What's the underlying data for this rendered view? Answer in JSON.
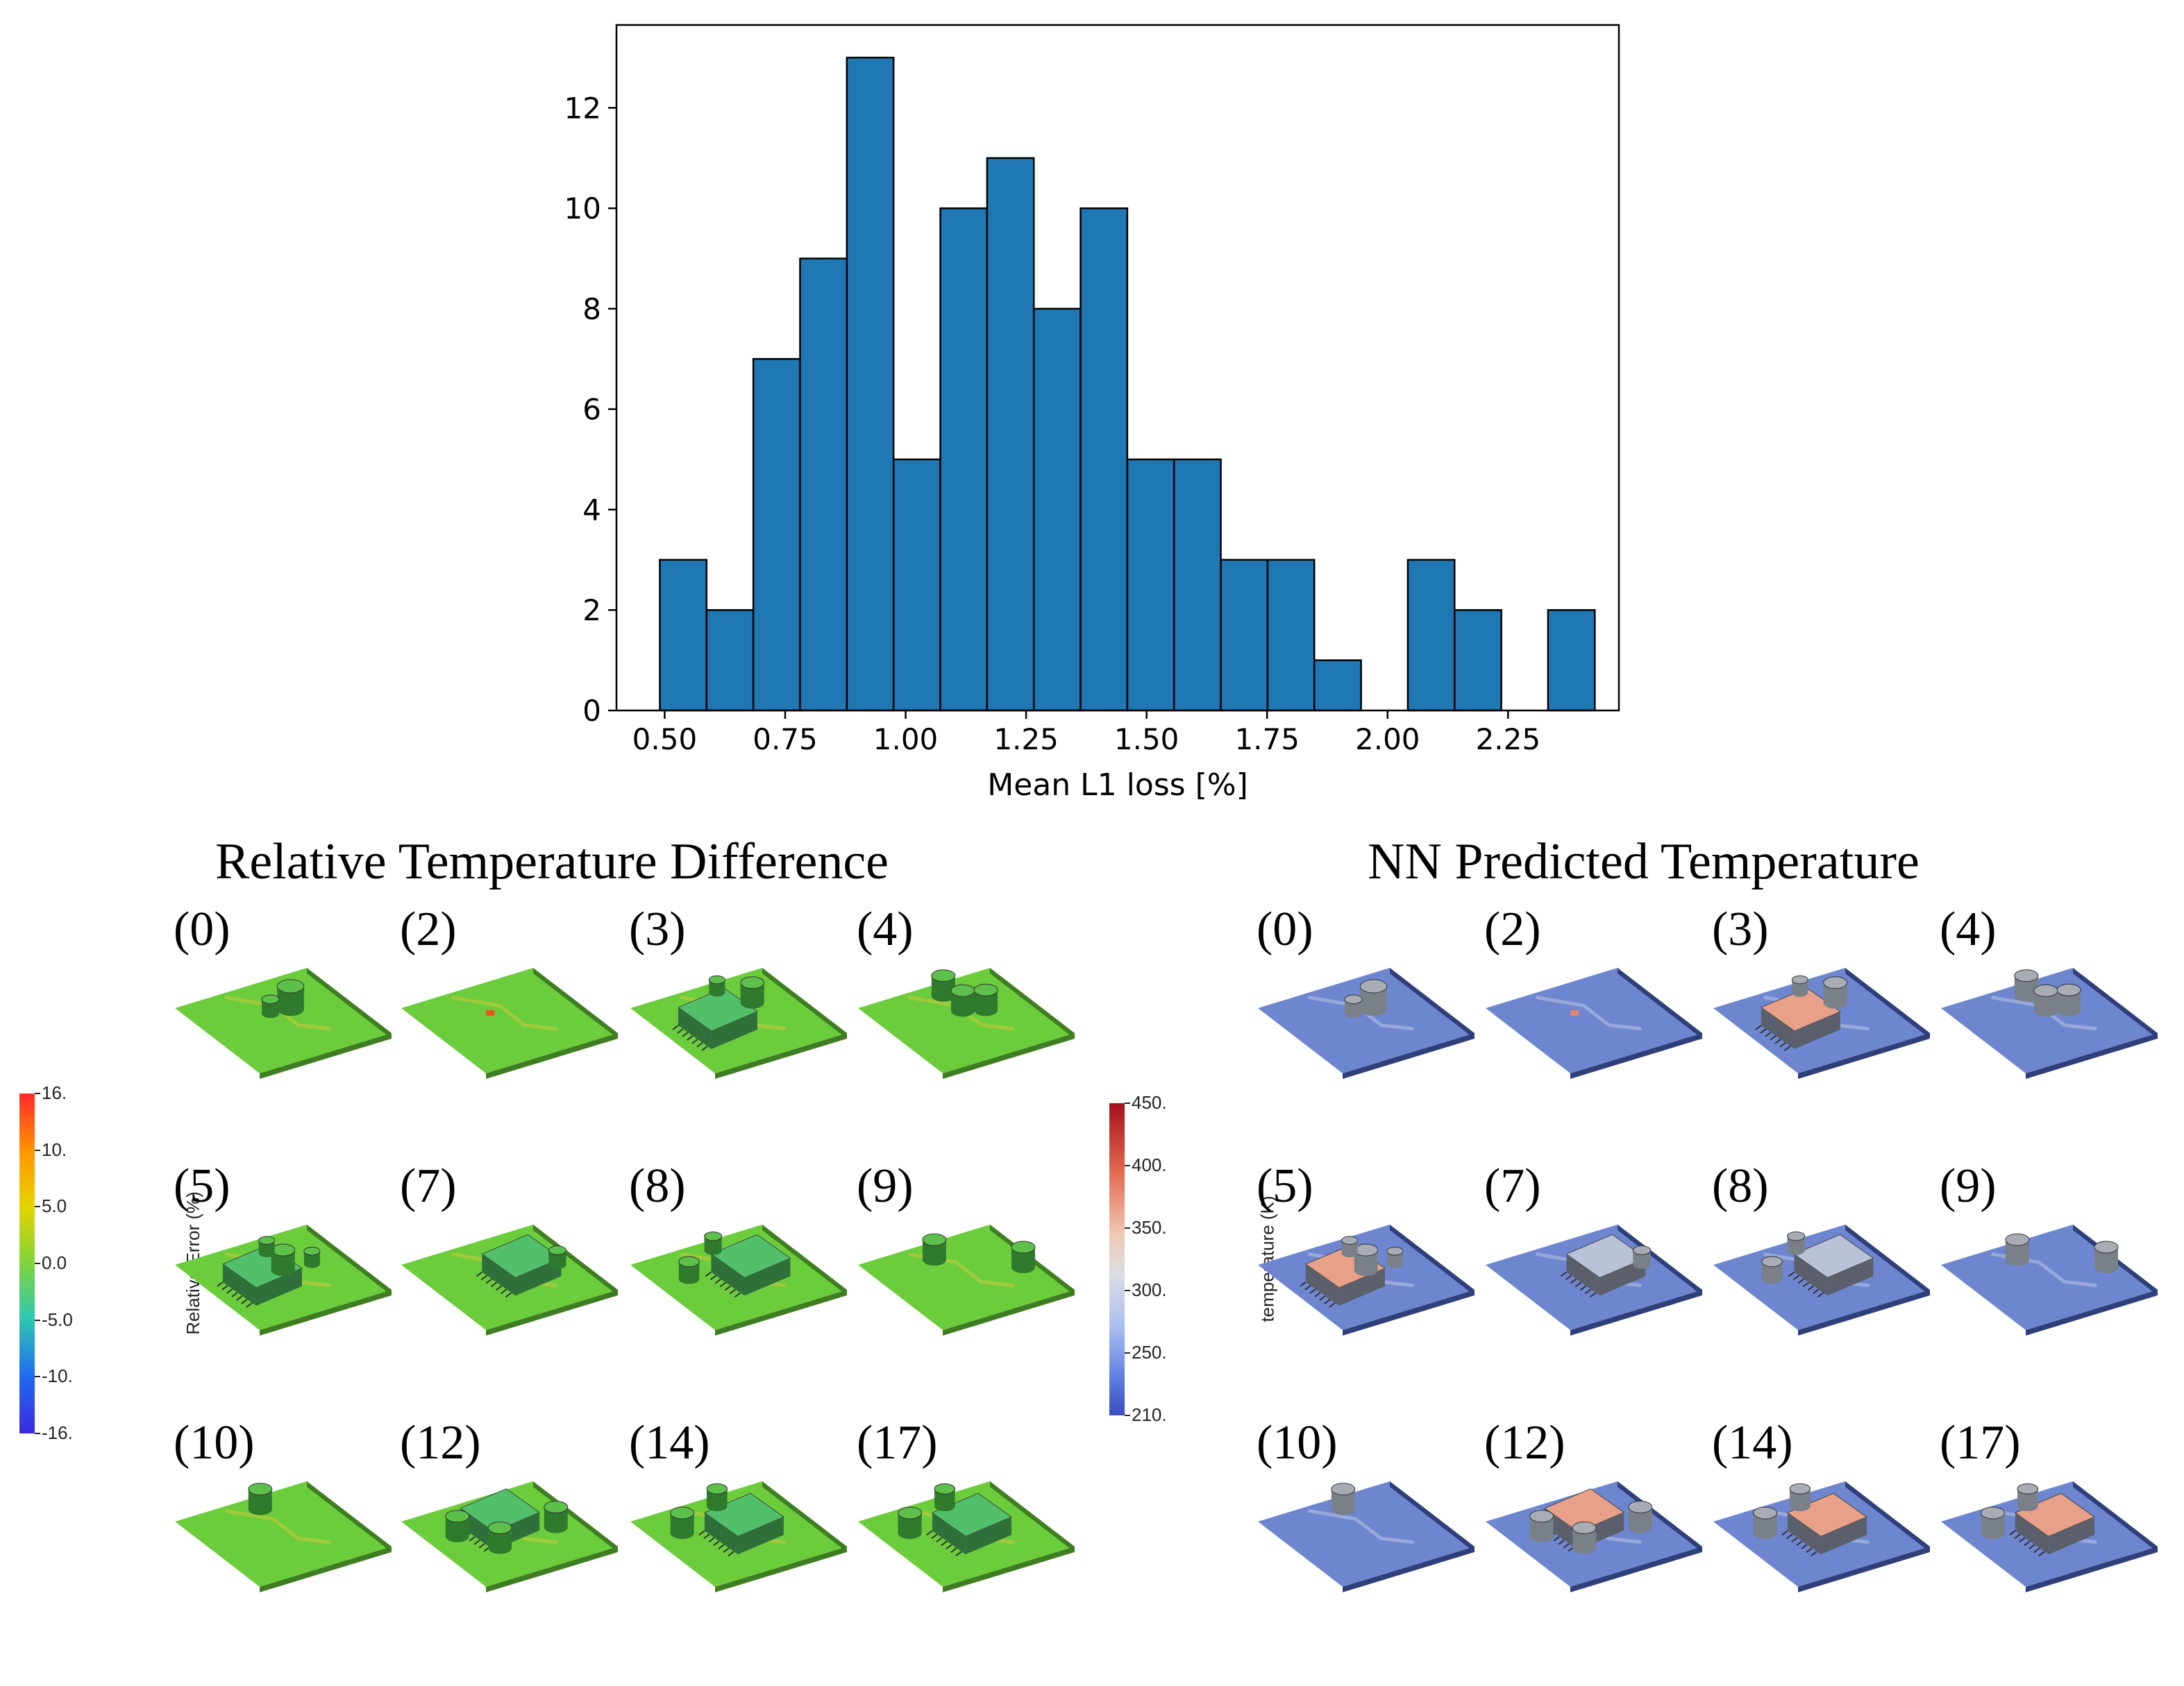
{
  "chart_data": {
    "type": "bar",
    "title": "",
    "xlabel": "Mean L1 loss [%]",
    "ylabel": "",
    "bin_edges": [
      0.49,
      0.587,
      0.684,
      0.781,
      0.878,
      0.975,
      1.072,
      1.169,
      1.266,
      1.363,
      1.46,
      1.557,
      1.654,
      1.751,
      1.848,
      1.945,
      2.042,
      2.139,
      2.236,
      2.333,
      2.43
    ],
    "values": [
      3,
      2,
      7,
      9,
      13,
      5,
      10,
      11,
      8,
      10,
      5,
      5,
      3,
      3,
      1,
      0,
      3,
      2,
      0,
      2
    ],
    "xticks": [
      0.5,
      0.75,
      1.0,
      1.25,
      1.5,
      1.75,
      2.0,
      2.25
    ],
    "xtick_labels": [
      "0.50",
      "0.75",
      "1.00",
      "1.25",
      "1.50",
      "1.75",
      "2.00",
      "2.25"
    ],
    "yticks": [
      0,
      2,
      4,
      6,
      8,
      10,
      12
    ],
    "ytick_labels": [
      "0",
      "2",
      "4",
      "6",
      "8",
      "10",
      "12"
    ],
    "xlim": [
      0.4,
      2.48
    ],
    "ylim": [
      0,
      13.65
    ],
    "bar_color": "#1f77b4",
    "edge_color": "#000000"
  },
  "sections": {
    "left_title": "Relative Temperature Difference",
    "right_title": "NN Predicted Temperature"
  },
  "panel_labels": [
    "(0)",
    "(2)",
    "(3)",
    "(4)",
    "(5)",
    "(7)",
    "(8)",
    "(9)",
    "(10)",
    "(12)",
    "(14)",
    "(17)"
  ],
  "colorbars": {
    "error": {
      "title": "Relative Error (%)",
      "ticks": [
        "16.",
        "10.",
        "5.0",
        "0.0",
        "-5.0",
        "-10.",
        "-16."
      ]
    },
    "temperature": {
      "title": "temperature (K)",
      "ticks": [
        "450.",
        "400.",
        "350.",
        "300.",
        "250.",
        "210."
      ]
    }
  },
  "colors": {
    "error_board": "#6ccd3c",
    "error_board_dark": "#3f7d22",
    "temp_board": "#6d86cf",
    "temp_board_dark": "#2f3f7a",
    "hot": "#e8a088",
    "component_gray": "#7a8088"
  }
}
